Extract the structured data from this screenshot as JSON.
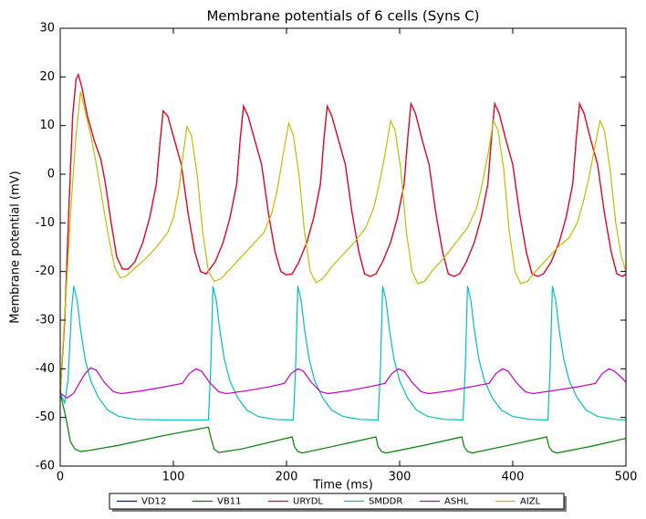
{
  "chart_data": {
    "type": "line",
    "title": "Membrane potentials of 6 cells (Syns C)",
    "x_label": "Time (ms)",
    "y_label": "Membrane potential (mV)",
    "xlim": [
      0,
      500
    ],
    "xticks": [
      0,
      100,
      200,
      300,
      400,
      500
    ],
    "ylim": [
      -60,
      30
    ],
    "yticks": [
      -60,
      -50,
      -40,
      -30,
      -20,
      -10,
      0,
      10,
      20,
      30
    ],
    "legend": "lower center",
    "series": [
      {
        "name": "VD12",
        "color": "#0000ff",
        "x": [
          0,
          4,
          8,
          11,
          14,
          16,
          19,
          24,
          30,
          36,
          40,
          45,
          50,
          55,
          60,
          66,
          73,
          79,
          85,
          88,
          91,
          95,
          101,
          107,
          113,
          119,
          124,
          129,
          137,
          144,
          150,
          156,
          159,
          162,
          166,
          172,
          178,
          184,
          190,
          195,
          200,
          205,
          211,
          218,
          224,
          230,
          233,
          236,
          240,
          246,
          252,
          258,
          264,
          269,
          274,
          279,
          285,
          292,
          298,
          304,
          307,
          310,
          314,
          320,
          326,
          332,
          338,
          343,
          348,
          353,
          359,
          366,
          372,
          378,
          381,
          384,
          388,
          394,
          400,
          406,
          412,
          417,
          422,
          427,
          434,
          441,
          447,
          453,
          456,
          459,
          463,
          469,
          475,
          481,
          487,
          492,
          497,
          500
        ],
        "values": [
          -45,
          -30,
          -5,
          12,
          19.5,
          20.5,
          18,
          12,
          7,
          3,
          -2,
          -10,
          -17,
          -19.5,
          -19.5,
          -18,
          -14,
          -9,
          -2,
          6,
          13,
          12,
          7,
          2,
          -8,
          -16,
          -20,
          -20.5,
          -18,
          -14,
          -9,
          -2,
          7,
          14,
          12,
          7,
          2,
          -8,
          -16,
          -20,
          -20.7,
          -20.5,
          -18,
          -14,
          -9,
          -2,
          7,
          14,
          12,
          7,
          2,
          -8,
          -16,
          -20.5,
          -21,
          -20.5,
          -18,
          -14,
          -9,
          -2,
          7,
          14.5,
          12.5,
          7,
          2,
          -8,
          -16,
          -20.5,
          -21,
          -20.5,
          -18,
          -14,
          -9,
          -2,
          7,
          14.5,
          12.5,
          7,
          2,
          -8,
          -16,
          -20.5,
          -21,
          -20.5,
          -18,
          -14,
          -9,
          -2,
          7,
          14.5,
          12.5,
          7,
          2,
          -8,
          -16,
          -20.5,
          -21,
          -20.5
        ]
      },
      {
        "name": "VB11",
        "color": "#008000",
        "x": [
          0,
          5,
          9,
          13,
          18,
          25,
          50,
          90,
          131,
          133,
          136,
          140,
          160,
          205,
          207,
          210,
          214,
          240,
          279,
          281,
          284,
          288,
          320,
          355,
          357,
          360,
          364,
          395,
          430,
          432,
          435,
          439,
          470,
          500
        ],
        "values": [
          -45,
          -50,
          -55,
          -56.5,
          -57,
          -56.8,
          -55.8,
          -53.8,
          -52,
          -54,
          -56.5,
          -57.2,
          -56.5,
          -54,
          -56,
          -57,
          -57.3,
          -56,
          -54,
          -56,
          -57,
          -57.3,
          -55.8,
          -54,
          -56,
          -57,
          -57.3,
          -55.8,
          -54,
          -56,
          -57,
          -57.3,
          -55.9,
          -54.3
        ]
      },
      {
        "name": "URYDL",
        "color": "#ff0000",
        "x": [
          0,
          4,
          8,
          11,
          14,
          16,
          19,
          24,
          30,
          36,
          40,
          45,
          50,
          55,
          60,
          66,
          73,
          79,
          85,
          88,
          91,
          95,
          101,
          107,
          113,
          119,
          124,
          129,
          137,
          144,
          150,
          156,
          159,
          162,
          166,
          172,
          178,
          184,
          190,
          195,
          200,
          205,
          211,
          218,
          224,
          230,
          233,
          236,
          240,
          246,
          252,
          258,
          264,
          269,
          274,
          279,
          285,
          292,
          298,
          304,
          307,
          310,
          314,
          320,
          326,
          332,
          338,
          343,
          348,
          353,
          359,
          366,
          372,
          378,
          381,
          384,
          388,
          394,
          400,
          406,
          412,
          417,
          422,
          427,
          434,
          441,
          447,
          453,
          456,
          459,
          463,
          469,
          475,
          481,
          487,
          492,
          497,
          500
        ],
        "values": [
          -45,
          -30,
          -5,
          12,
          19.5,
          20.5,
          18,
          12,
          7,
          3,
          -2,
          -10,
          -17,
          -19.5,
          -19.5,
          -18,
          -14,
          -9,
          -2,
          6,
          13,
          12,
          7,
          2,
          -8,
          -16,
          -20,
          -20.5,
          -18,
          -14,
          -9,
          -2,
          7,
          14,
          12,
          7,
          2,
          -8,
          -16,
          -20,
          -20.7,
          -20.5,
          -18,
          -14,
          -9,
          -2,
          7,
          14,
          12,
          7,
          2,
          -8,
          -16,
          -20.5,
          -21,
          -20.5,
          -18,
          -14,
          -9,
          -2,
          7,
          14.5,
          12.5,
          7,
          2,
          -8,
          -16,
          -20.5,
          -21,
          -20.5,
          -18,
          -14,
          -9,
          -2,
          7,
          14.5,
          12.5,
          7,
          2,
          -8,
          -16,
          -20.5,
          -21,
          -20.5,
          -18,
          -14,
          -9,
          -2,
          7,
          14.5,
          12.5,
          7,
          2,
          -8,
          -16,
          -20.5,
          -21,
          -20.5
        ]
      },
      {
        "name": "SMDDR",
        "color": "#00bfbf",
        "x": [
          0,
          4,
          7,
          10,
          12,
          15,
          18,
          22,
          27,
          34,
          42,
          52,
          67,
          90,
          131,
          133,
          135,
          138,
          141,
          145,
          150,
          157,
          165,
          175,
          190,
          206,
          208,
          210,
          213,
          216,
          220,
          225,
          232,
          240,
          250,
          265,
          281,
          283,
          285,
          288,
          291,
          295,
          300,
          307,
          315,
          325,
          340,
          356,
          358,
          360,
          363,
          366,
          370,
          375,
          382,
          390,
          400,
          415,
          431,
          433,
          435,
          438,
          441,
          445,
          450,
          457,
          465,
          475,
          490,
          500
        ],
        "values": [
          -45,
          -47,
          -42,
          -28,
          -23,
          -26,
          -32,
          -38,
          -42.5,
          -46,
          -48.5,
          -49.8,
          -50.4,
          -50.5,
          -50.5,
          -40,
          -23,
          -26,
          -32,
          -38,
          -42.5,
          -46,
          -48.5,
          -49.8,
          -50.4,
          -50.5,
          -40,
          -23,
          -26,
          -32,
          -38,
          -42.5,
          -46,
          -48.5,
          -49.8,
          -50.4,
          -50.5,
          -40,
          -23,
          -26,
          -32,
          -38,
          -42.5,
          -46,
          -48.5,
          -49.8,
          -50.4,
          -50.5,
          -40,
          -23,
          -26,
          -32,
          -38,
          -42.5,
          -46,
          -48.5,
          -49.8,
          -50.4,
          -50.5,
          -40,
          -23,
          -26,
          -32,
          -38,
          -42.5,
          -46,
          -48.5,
          -49.8,
          -50.4,
          -50.5
        ]
      },
      {
        "name": "ASHL",
        "color": "#bf00bf",
        "x": [
          0,
          6,
          12,
          18,
          22,
          27,
          32,
          39,
          47,
          54,
          70,
          90,
          108,
          114,
          120,
          125,
          132,
          140,
          147,
          165,
          185,
          198,
          204,
          210,
          215,
          222,
          230,
          237,
          255,
          275,
          287,
          293,
          299,
          304,
          311,
          319,
          326,
          345,
          365,
          379,
          385,
          391,
          396,
          403,
          411,
          418,
          438,
          460,
          473,
          479,
          485,
          490,
          497,
          500
        ],
        "values": [
          -45,
          -46,
          -45,
          -42.5,
          -41,
          -39.8,
          -40.3,
          -42.8,
          -44.7,
          -45.1,
          -44.6,
          -43.8,
          -43,
          -41,
          -40,
          -40.5,
          -42.8,
          -44.7,
          -45.1,
          -44.5,
          -43.7,
          -43,
          -41,
          -40,
          -40.5,
          -42.8,
          -44.7,
          -45.1,
          -44.5,
          -43.6,
          -43,
          -41,
          -40,
          -40.5,
          -42.8,
          -44.7,
          -45.1,
          -44.5,
          -43.6,
          -43,
          -41,
          -40,
          -40.5,
          -42.8,
          -44.7,
          -45.1,
          -44.4,
          -43.6,
          -43,
          -41,
          -40,
          -40.5,
          -42,
          -42.8
        ]
      },
      {
        "name": "AIZL",
        "color": "#bfbf00",
        "x": [
          0,
          5,
          10,
          14,
          18,
          22,
          27,
          32,
          37,
          42,
          48,
          53,
          58,
          65,
          75,
          85,
          95,
          100,
          105,
          108,
          112,
          116,
          121,
          126,
          131,
          136,
          142,
          150,
          160,
          170,
          180,
          187,
          192,
          197,
          202,
          206,
          211,
          216,
          221,
          226,
          232,
          240,
          250,
          260,
          270,
          277,
          282,
          287,
          292,
          296,
          301,
          306,
          311,
          316,
          322,
          330,
          340,
          350,
          360,
          368,
          373,
          378,
          383,
          387,
          392,
          397,
          402,
          407,
          413,
          420,
          430,
          440,
          450,
          457,
          462,
          467,
          472,
          477,
          481,
          486,
          491,
          496,
          500
        ],
        "values": [
          -45,
          -25,
          -5,
          8,
          17,
          13,
          8,
          2,
          -5,
          -12,
          -19,
          -21.3,
          -21,
          -19.5,
          -17.5,
          -15,
          -12,
          -9,
          -3,
          3,
          9.8,
          8,
          0,
          -12,
          -20,
          -22,
          -21.5,
          -19.5,
          -17,
          -14.5,
          -12,
          -8,
          -3,
          4,
          10.5,
          8,
          0,
          -12,
          -20,
          -22.3,
          -21.5,
          -19,
          -16.5,
          -14,
          -11,
          -7,
          -2,
          4,
          11,
          9,
          1,
          -12,
          -20,
          -22.5,
          -22,
          -19.5,
          -17,
          -14,
          -11,
          -7,
          -2,
          4,
          11,
          9,
          1,
          -12,
          -20,
          -22.5,
          -22,
          -20,
          -17.5,
          -15,
          -13,
          -10,
          -6,
          -1,
          5,
          11,
          9,
          1,
          -10,
          -17,
          -20
        ]
      }
    ]
  }
}
